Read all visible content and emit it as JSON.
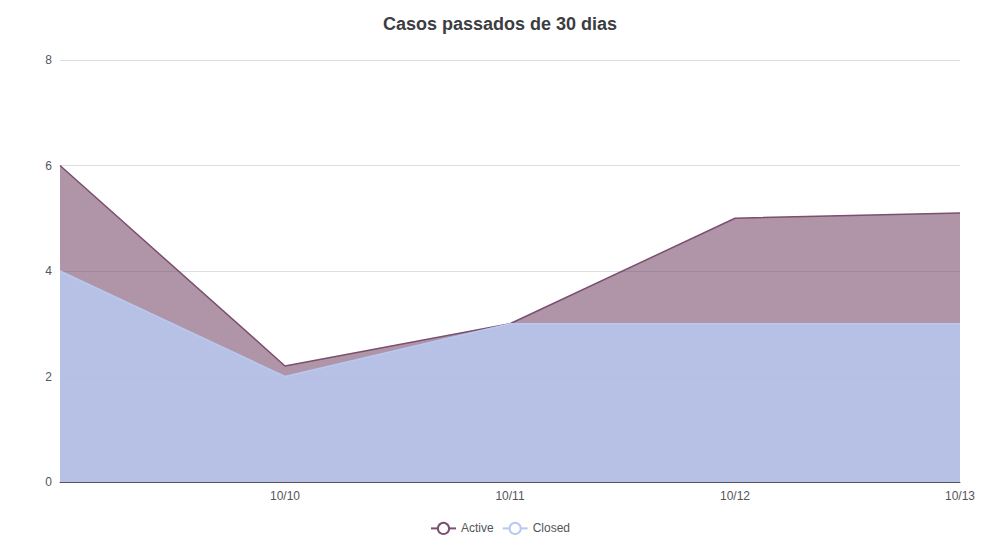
{
  "chart_data": {
    "type": "area",
    "title": "Casos passados de 30 dias",
    "categories": [
      null,
      "10/10",
      "10/11",
      "10/12",
      "10/13"
    ],
    "series": [
      {
        "name": "Active",
        "color": "#7B4F6E",
        "values": [
          6.0,
          2.2,
          3.0,
          5.0,
          5.1
        ]
      },
      {
        "name": "Closed",
        "color": "#b8c9f0",
        "values": [
          4.0,
          2.0,
          3.0,
          3.0,
          3.0
        ]
      }
    ],
    "ylim": [
      0,
      8
    ],
    "yticks": [
      0,
      2,
      4,
      6,
      8
    ],
    "grid": true,
    "legend": "bottom"
  }
}
